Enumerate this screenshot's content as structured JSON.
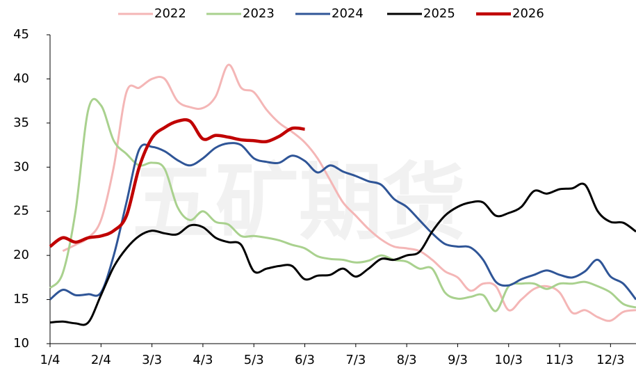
{
  "chart_data": {
    "type": "line",
    "watermark": "五矿期货",
    "categories": [
      "1/4",
      null,
      null,
      null,
      "2/4",
      null,
      null,
      null,
      "3/3",
      null,
      null,
      null,
      "4/3",
      null,
      null,
      null,
      "5/3",
      null,
      null,
      null,
      "6/3",
      null,
      null,
      null,
      "7/3",
      null,
      null,
      null,
      "8/3",
      null,
      null,
      null,
      "9/3",
      null,
      null,
      null,
      "10/3",
      null,
      null,
      null,
      "11/3",
      null,
      null,
      null,
      "12/3",
      null,
      null
    ],
    "series": [
      {
        "name": "2022",
        "color": "#f4b6b6",
        "width": 3,
        "values": [
          null,
          20.5,
          21.2,
          22,
          24,
          30,
          38.5,
          39,
          40,
          40,
          37.5,
          36.8,
          36.7,
          38,
          41.6,
          39,
          38.5,
          36.5,
          35,
          34,
          32.8,
          31,
          28.5,
          26,
          24.5,
          23,
          21.8,
          21,
          20.8,
          20.5,
          19.5,
          18.2,
          17.5,
          16,
          16.8,
          16.5,
          13.8,
          15,
          16.2,
          16.5,
          15.8,
          13.5,
          13.8,
          13,
          12.6,
          13.6,
          13.8
        ]
      },
      {
        "name": "2023",
        "color": "#a9d18e",
        "width": 3,
        "values": [
          16.3,
          18,
          25,
          36.5,
          37,
          33,
          31.5,
          30.2,
          30.5,
          29.8,
          25.5,
          24,
          25,
          23.8,
          23.5,
          22.2,
          22.2,
          22,
          21.7,
          21.2,
          20.8,
          19.9,
          19.6,
          19.5,
          19.2,
          19.4,
          20,
          19.5,
          19.3,
          18.5,
          18.5,
          15.8,
          15.1,
          15.3,
          15.5,
          13.7,
          16.5,
          16.8,
          16.8,
          16.2,
          16.8,
          16.8,
          17,
          16.5,
          15.8,
          14.5,
          14.1
        ]
      },
      {
        "name": "2024",
        "color": "#2f5597",
        "width": 3,
        "values": [
          15,
          16.1,
          15.5,
          15.6,
          15.8,
          20,
          26,
          32,
          32.3,
          31.8,
          30.8,
          30.2,
          31,
          32.2,
          32.7,
          32.5,
          31,
          30.6,
          30.5,
          31.3,
          30.7,
          29.4,
          30.2,
          29.5,
          29,
          28.4,
          28,
          26.4,
          25.5,
          24,
          22.5,
          21.3,
          21,
          20.9,
          19.5,
          17,
          16.6,
          17.3,
          17.8,
          18.3,
          17.8,
          17.5,
          18.2,
          19.5,
          17.6,
          16.8,
          15
        ]
      },
      {
        "name": "2025",
        "color": "#000000",
        "width": 3,
        "values": [
          12.4,
          12.5,
          12.3,
          12.4,
          15.5,
          18.7,
          20.8,
          22.2,
          22.8,
          22.5,
          22.4,
          23.4,
          23.2,
          22,
          21.5,
          21.2,
          18.2,
          18.5,
          18.8,
          18.8,
          17.3,
          17.7,
          17.8,
          18.5,
          17.6,
          18.5,
          19.6,
          19.5,
          20,
          20.4,
          22.7,
          24.5,
          25.5,
          26,
          26,
          24.5,
          24.8,
          25.5,
          27.3,
          27,
          27.5,
          27.6,
          28,
          25,
          23.8,
          23.7,
          22.7
        ]
      },
      {
        "name": "2026",
        "color": "#c00000",
        "width": 4.5,
        "values": [
          21,
          22,
          21.5,
          22,
          22.2,
          22.8,
          24.5,
          30,
          33.3,
          34.5,
          35.2,
          35.2,
          33.2,
          33.6,
          33.4,
          33.1,
          33,
          32.9,
          33.5,
          34.4,
          34.3,
          null,
          null,
          null,
          null,
          null,
          null,
          null,
          null,
          null,
          null,
          null,
          null,
          null,
          null,
          null,
          null,
          null,
          null,
          null,
          null,
          null,
          null,
          null,
          null,
          null,
          null
        ]
      }
    ],
    "ylim": [
      10,
      45
    ],
    "yticks": [
      10,
      15,
      20,
      25,
      30,
      35,
      40,
      45
    ],
    "legend": "top"
  }
}
